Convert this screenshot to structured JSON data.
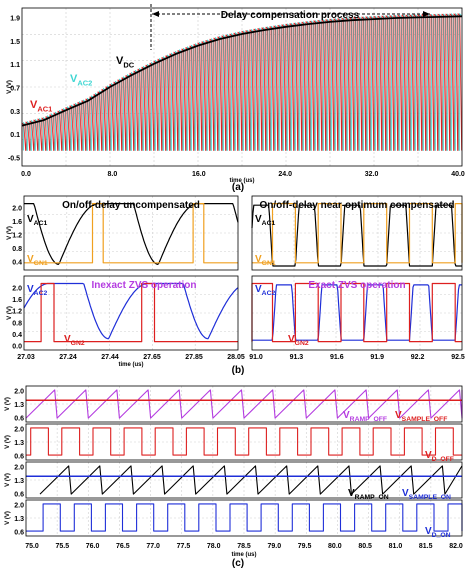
{
  "colors": {
    "red": "#dd1f1f",
    "cyan": "#3fd6d2",
    "black": "#000000",
    "orange": "#f0a020",
    "blue": "#1f2fd8",
    "purple": "#b43ce0",
    "grid": "#cfcfcf"
  },
  "panel_labels": {
    "a": "(a)",
    "b": "(b)",
    "c": "(c)"
  },
  "chart_data": [
    {
      "id": "a",
      "type": "line",
      "annotation": "Delay compensation process",
      "ylabel": "V (V)",
      "xlabel": "time (us)",
      "yticks": [
        "1.9",
        "1.5",
        "1.1",
        "0.7",
        "0.3",
        "0.1",
        "-0.5"
      ],
      "xticks": [
        "0.0",
        "8.0",
        "16.0",
        "24.0",
        "32.0",
        "40.0"
      ],
      "xlim": [
        0,
        40
      ],
      "series": [
        {
          "name": "V",
          "sub": "AC1",
          "color": "#dd1f1f"
        },
        {
          "name": "V",
          "sub": "AC2",
          "color": "#3fd6d2"
        },
        {
          "name": "V",
          "sub": "DC",
          "color": "#000000",
          "x": [
            0,
            2,
            4,
            6,
            8,
            10,
            12,
            14,
            16,
            18,
            20,
            22,
            24,
            26,
            28,
            30,
            32,
            34,
            36,
            38,
            40
          ],
          "y": [
            0.0,
            0.1,
            0.28,
            0.45,
            0.7,
            0.92,
            1.12,
            1.3,
            1.45,
            1.57,
            1.66,
            1.73,
            1.79,
            1.84,
            1.88,
            1.91,
            1.93,
            1.95,
            1.96,
            1.97,
            1.98
          ]
        }
      ]
    },
    {
      "id": "b-left",
      "type": "line",
      "title": "On/off-delay uncompensated",
      "annotation": "Inexact ZVS operation",
      "ylabel": "V (V)",
      "xlabel": "time (us)",
      "yticks_top": [
        "2.0",
        "1.6",
        "1.2",
        "0.8",
        "0.4"
      ],
      "yticks_bottom": [
        "2.0",
        "1.6",
        "1.2",
        "0.8",
        "0.4",
        "0.0"
      ],
      "xticks": [
        "27.03",
        "27.24",
        "27.44",
        "27.65",
        "27.85",
        "28.05"
      ],
      "series": [
        {
          "name": "V",
          "sub": "AC1",
          "color": "#000000"
        },
        {
          "name": "V",
          "sub": "GN1",
          "color": "#f0a020"
        },
        {
          "name": "V",
          "sub": "AC2",
          "color": "#1f2fd8"
        },
        {
          "name": "V",
          "sub": "GN2",
          "color": "#dd1f1f"
        }
      ]
    },
    {
      "id": "b-right",
      "type": "line",
      "title": "On/off-delay near-optimum compensated",
      "annotation": "Exact ZVS operation",
      "xticks": [
        "91.0",
        "91.3",
        "91.6",
        "91.9",
        "92.2",
        "92.5"
      ],
      "series": [
        {
          "name": "V",
          "sub": "AC1",
          "color": "#000000"
        },
        {
          "name": "V",
          "sub": "GN1",
          "color": "#f0a020"
        },
        {
          "name": "V",
          "sub": "AC2",
          "color": "#1f2fd8"
        },
        {
          "name": "V",
          "sub": "GN2",
          "color": "#dd1f1f"
        }
      ]
    },
    {
      "id": "c",
      "type": "line",
      "ylabel": "V (V)",
      "xlabel": "time (us)",
      "yticks": [
        "2.0",
        "1.3",
        "0.6"
      ],
      "xticks": [
        "75.0",
        "75.5",
        "76.0",
        "76.5",
        "77.0",
        "77.5",
        "78.0",
        "78.5",
        "79.0",
        "79.5",
        "80.0",
        "80.5",
        "81.0",
        "81.5",
        "82.0"
      ],
      "series": [
        {
          "name": "V",
          "sub": "RAMP_OFF",
          "color": "#b43ce0"
        },
        {
          "name": "V",
          "sub": "SAMPLE_OFF",
          "color": "#dd1f1f"
        },
        {
          "name": "V",
          "sub": "D_OFF",
          "color": "#dd1f1f"
        },
        {
          "name": "V",
          "sub": "RAMP_ON",
          "color": "#000000"
        },
        {
          "name": "V",
          "sub": "SAMPLE_ON",
          "color": "#1f2fd8"
        },
        {
          "name": "V",
          "sub": "D_ON",
          "color": "#1f2fd8"
        }
      ]
    }
  ]
}
